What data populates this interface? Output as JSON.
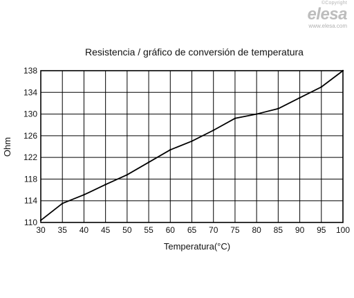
{
  "brand": {
    "copyright": "©Copyright",
    "logo": "elesa",
    "url": "www.elesa.com"
  },
  "chart_data": {
    "type": "line",
    "title": "Resistencia / gráfico de conversión de temperatura",
    "xlabel": "Temperatura(°C)",
    "ylabel": "Ohm",
    "xlim": [
      30,
      100
    ],
    "ylim": [
      110,
      138
    ],
    "x_ticks": [
      30,
      35,
      40,
      45,
      50,
      55,
      60,
      65,
      70,
      75,
      80,
      85,
      90,
      95,
      100
    ],
    "y_ticks": [
      110,
      114,
      118,
      122,
      126,
      130,
      134,
      138
    ],
    "grid": true,
    "line_color": "#000000",
    "series": [
      {
        "x": [
          30,
          35,
          40,
          45,
          50,
          55,
          60,
          65,
          70,
          75,
          80,
          85,
          90,
          95,
          100
        ],
        "y": [
          110.4,
          113.5,
          115.1,
          117.0,
          118.8,
          121.1,
          123.4,
          125.0,
          127.0,
          129.2,
          130.0,
          131.0,
          133.0,
          135.0,
          138.0
        ]
      }
    ]
  }
}
